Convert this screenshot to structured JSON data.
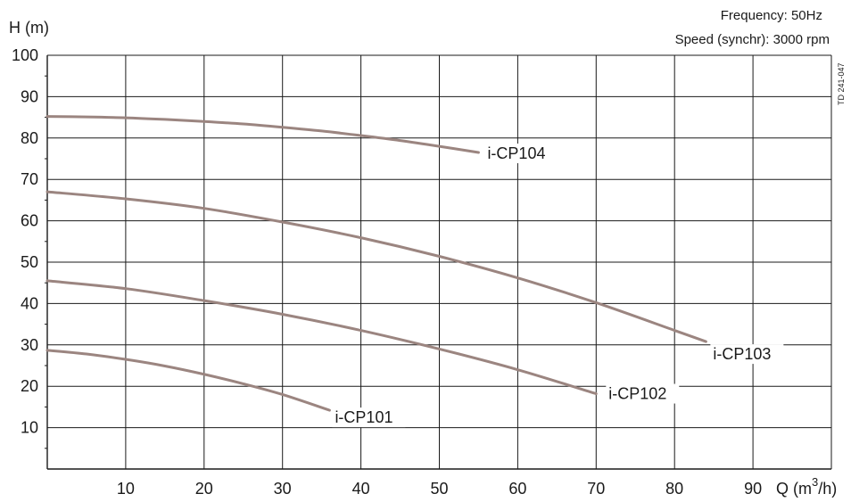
{
  "chart_data": {
    "type": "line",
    "ylabel": "H (m)",
    "xlabel": "Q (m",
    "xlabel_sup": "3",
    "xlabel_suffix": "/h)",
    "notes": [
      "Frequency: 50Hz",
      "Speed (synchr): 3000 rpm"
    ],
    "drawing_code": "TD 241-047",
    "xlim": [
      0,
      100
    ],
    "ylim": [
      0,
      100
    ],
    "x_ticks": [
      10,
      20,
      30,
      40,
      50,
      60,
      70,
      80,
      90
    ],
    "y_ticks": [
      10,
      20,
      30,
      40,
      50,
      60,
      70,
      80,
      90,
      100
    ],
    "grid": true,
    "curve_color": "#9b8580",
    "series": [
      {
        "name": "i-CP104",
        "x": [
          0,
          5,
          10,
          15,
          20,
          25,
          30,
          35,
          40,
          45,
          50,
          55
        ],
        "y": [
          85.2,
          85.1,
          84.9,
          84.5,
          84.0,
          83.4,
          82.6,
          81.7,
          80.6,
          79.4,
          78.0,
          76.5
        ]
      },
      {
        "name": "i-CP103",
        "x": [
          0,
          10,
          20,
          30,
          40,
          50,
          60,
          70,
          80,
          84
        ],
        "y": [
          67.0,
          65.3,
          63.0,
          59.7,
          55.9,
          51.4,
          46.2,
          40.2,
          33.5,
          30.8
        ]
      },
      {
        "name": "i-CP102",
        "x": [
          0,
          10,
          20,
          30,
          40,
          50,
          60,
          70
        ],
        "y": [
          45.5,
          43.6,
          40.7,
          37.4,
          33.5,
          29.0,
          24.0,
          18.2
        ]
      },
      {
        "name": "i-CP101",
        "x": [
          0,
          5,
          10,
          15,
          20,
          25,
          30,
          36
        ],
        "y": [
          28.7,
          27.8,
          26.5,
          24.9,
          22.9,
          20.6,
          18.0,
          14.2
        ]
      }
    ]
  }
}
